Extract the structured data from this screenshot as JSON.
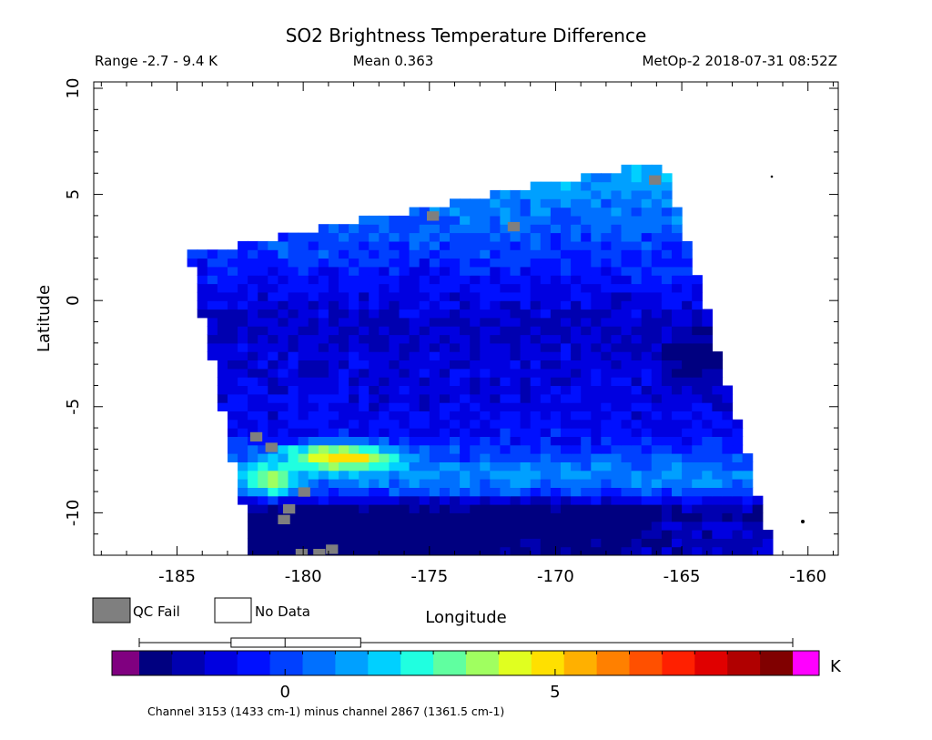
{
  "chart_data": {
    "type": "heatmap",
    "title": "SO2 Brightness Temperature Difference",
    "header_left": "Range -2.7 - 9.4 K",
    "header_center": "Mean 0.363",
    "header_right": "MetOp-2 2018-07-31 08:52Z",
    "xlabel": "Longitude",
    "ylabel": "Latitude",
    "xlim": [
      -188.3,
      -158.8
    ],
    "ylim": [
      -12,
      10.3
    ],
    "x_ticks": [
      "-185",
      "-180",
      "-175",
      "-170",
      "-165",
      "-160"
    ],
    "x_tick_values": [
      -185,
      -180,
      -175,
      -170,
      -165,
      -160
    ],
    "y_ticks": [
      "10",
      "5",
      "0",
      "-5",
      "-10"
    ],
    "y_tick_values": [
      10,
      5,
      0,
      -5,
      -10
    ],
    "swath": {
      "corners": [
        [
          -184.5,
          2.2
        ],
        [
          -165.7,
          6.6
        ],
        [
          -161.3,
          -12
        ],
        [
          -182.0,
          -12
        ]
      ],
      "cell_size_deg": 0.4,
      "qc_fail_cells": [
        [
          -181.9,
          -6.4
        ],
        [
          -181.3,
          -6.9
        ],
        [
          -180.0,
          -9.0
        ],
        [
          -180.6,
          -9.8
        ],
        [
          -180.8,
          -10.3
        ],
        [
          -178.9,
          -11.7
        ],
        [
          -179.4,
          -11.9
        ],
        [
          -180.1,
          -11.9
        ],
        [
          -174.9,
          4.0
        ],
        [
          -166.1,
          5.7
        ],
        [
          -171.7,
          3.5
        ]
      ],
      "features": [
        {
          "desc": "high-latitude blue region",
          "value": -1.0
        },
        {
          "desc": "equatorial dark blue patch near -164.5 lon, -2.8 lat",
          "value": -2.5
        },
        {
          "desc": "warm band near -7 lat from -181 to -176 lon",
          "value": 8.5
        },
        {
          "desc": "cyan-yellow band from -7 to -9 lat",
          "value": 3.5
        }
      ]
    },
    "legend": [
      {
        "label": "QC Fail",
        "color": "#7f7f7f"
      },
      {
        "label": "No Data",
        "color": "#ffffff"
      }
    ],
    "colorbar": {
      "vmin": -2.7,
      "vmax": 9.4,
      "ticks": [
        0,
        5
      ],
      "tick_labels": [
        "0",
        "5"
      ],
      "unit": "K",
      "under_color": "#800080",
      "over_color": "#ff00ff",
      "colors": [
        "#000080",
        "#0000b0",
        "#0000e0",
        "#0010ff",
        "#0040ff",
        "#0070ff",
        "#00a0ff",
        "#00d0ff",
        "#20ffe0",
        "#60ffa0",
        "#a0ff60",
        "#e0ff20",
        "#ffe000",
        "#ffb000",
        "#ff8000",
        "#ff5000",
        "#ff2000",
        "#e00000",
        "#b00000",
        "#800000"
      ],
      "boxplot": {
        "whisker_low": -2.7,
        "q1": -1.0,
        "median": 0.0,
        "q3": 1.4,
        "whisker_high": 9.4
      }
    },
    "caption": "Channel 3153 (1433 cm-1) minus channel 2867 (1361.5 cm-1)"
  }
}
